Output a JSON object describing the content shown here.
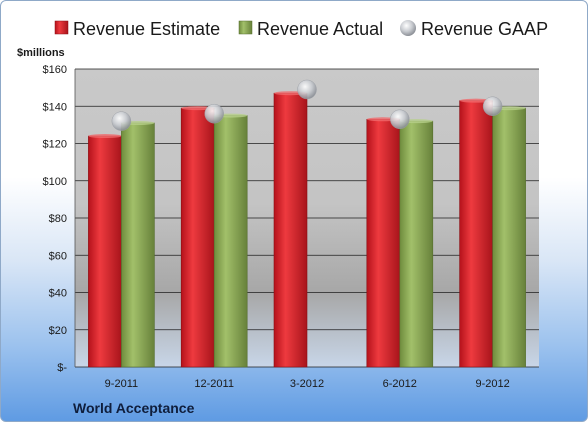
{
  "chart_data": {
    "type": "bar",
    "unit_label": "$millions",
    "company": "World Acceptance",
    "categories": [
      "9-2011",
      "12-2011",
      "3-2012",
      "6-2012",
      "9-2012"
    ],
    "series": [
      {
        "name": "Revenue Estimate",
        "type": "bar",
        "color": "#d8212a",
        "values": [
          124,
          139,
          147,
          133,
          143
        ]
      },
      {
        "name": "Revenue Actual",
        "type": "bar",
        "color": "#8aaa52",
        "values": [
          131,
          135,
          null,
          132,
          139
        ]
      },
      {
        "name": "Revenue GAAP",
        "type": "marker",
        "color": "#c8ccd2",
        "values": [
          132,
          136,
          149,
          133,
          140
        ]
      }
    ],
    "y_ticks": [
      "$-",
      "$20",
      "$40",
      "$60",
      "$80",
      "$100",
      "$120",
      "$140",
      "$160"
    ],
    "ylim": [
      0,
      160
    ],
    "grid": true,
    "legend_position": "top"
  }
}
